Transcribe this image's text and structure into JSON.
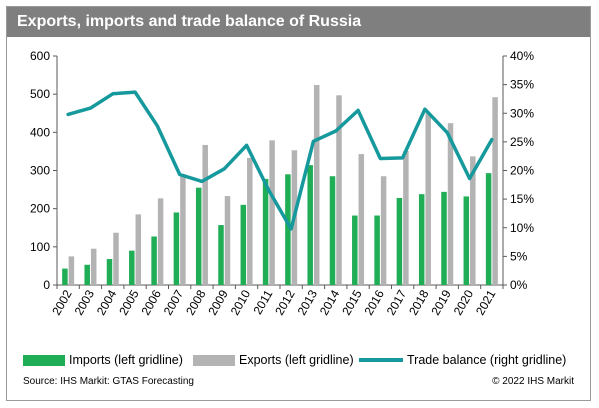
{
  "title": "Exports, imports and trade balance of Russia",
  "source": "Source: IHS Markit: GTAS Forecasting",
  "copyright": "© 2022 IHS Markit",
  "colors": {
    "imports": "#1fad55",
    "exports": "#b3b3b3",
    "balance": "#16999c",
    "title_bg": "#7f7f7f"
  },
  "legend": [
    {
      "label": "Imports (left gridline)",
      "kind": "box",
      "color": "#1fad55"
    },
    {
      "label": "Exports (left gridline)",
      "kind": "box",
      "color": "#b3b3b3"
    },
    {
      "label": "Trade balance (right gridline)",
      "kind": "line",
      "color": "#16999c"
    }
  ],
  "chart_data": {
    "type": "bar",
    "categories": [
      "2002",
      "2003",
      "2004",
      "2005",
      "2006",
      "2007",
      "2008",
      "2009",
      "2010",
      "2011",
      "2012",
      "2013",
      "2014",
      "2015",
      "2016",
      "2017",
      "2018",
      "2019",
      "2020",
      "2021"
    ],
    "series": [
      {
        "name": "Imports (left gridline)",
        "type": "bar",
        "axis": "left",
        "values": [
          43,
          53,
          68,
          90,
          127,
          190,
          255,
          157,
          210,
          278,
          290,
          314,
          285,
          182,
          182,
          228,
          238,
          244,
          232,
          293
        ]
      },
      {
        "name": "Exports (left gridline)",
        "type": "bar",
        "axis": "left",
        "values": [
          75,
          95,
          137,
          185,
          227,
          290,
          367,
          233,
          333,
          379,
          353,
          524,
          497,
          343,
          285,
          351,
          450,
          424,
          337,
          492
        ]
      },
      {
        "name": "Trade balance (right gridline)",
        "type": "line",
        "axis": "right",
        "values": [
          29.8,
          30.9,
          33.4,
          33.7,
          27.8,
          19.3,
          18.1,
          20.3,
          24.4,
          16.5,
          9.8,
          25.1,
          26.9,
          30.5,
          22.1,
          22.2,
          30.7,
          26.6,
          18.6,
          25.4
        ]
      }
    ],
    "y_left": {
      "min": 0,
      "max": 600,
      "ticks": [
        "0",
        "100",
        "200",
        "300",
        "400",
        "500",
        "600"
      ]
    },
    "y_right": {
      "min": 0,
      "max": 40,
      "ticks": [
        "0%",
        "5%",
        "10%",
        "15%",
        "20%",
        "25%",
        "30%",
        "35%",
        "40%"
      ]
    },
    "grid": false,
    "legend_position": "bottom"
  }
}
